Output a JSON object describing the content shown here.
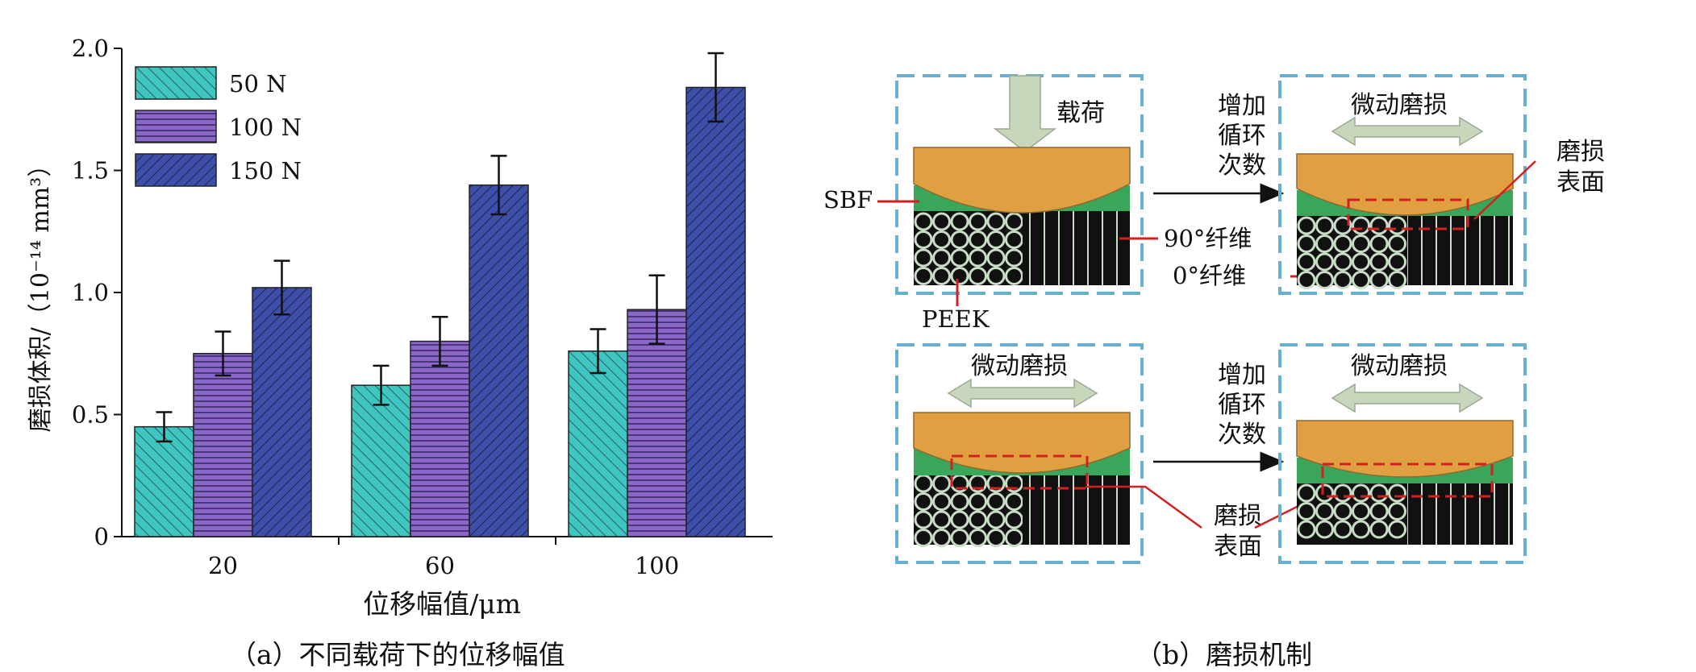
{
  "chart_data": {
    "type": "bar",
    "title": "",
    "xlabel": "位移幅值/μm",
    "ylabel": "磨损体积/（10⁻¹⁴ mm³）",
    "ylim": [
      0,
      2.0
    ],
    "yticks": [
      "0",
      "0.5",
      "1.0",
      "1.5",
      "2.0"
    ],
    "yticks_values": [
      0,
      0.5,
      1.0,
      1.5,
      2.0
    ],
    "categories": [
      "20",
      "60",
      "100"
    ],
    "legend_position": "top-left",
    "grid": false,
    "series": [
      {
        "name": "50 N",
        "values": [
          0.45,
          0.62,
          0.76
        ],
        "errors": [
          0.06,
          0.08,
          0.09
        ],
        "color": "#3fc6c0",
        "pattern": "diagonal"
      },
      {
        "name": "100 N",
        "values": [
          0.75,
          0.8,
          0.93
        ],
        "errors": [
          0.09,
          0.1,
          0.14
        ],
        "color": "#8b68c8",
        "pattern": "horizontal"
      },
      {
        "name": "150 N",
        "values": [
          1.02,
          1.44,
          1.84
        ],
        "errors": [
          0.11,
          0.12,
          0.14
        ],
        "color": "#3d4fa8",
        "pattern": "diagonal-back"
      }
    ]
  },
  "captions": {
    "a": "（a）不同载荷下的位移幅值",
    "b": "（b）磨损机制"
  },
  "mechanism": {
    "load_label": "载荷",
    "increase_cycles_lines": [
      "增加",
      "循环",
      "次数"
    ],
    "fretting_wear": "微动磨损",
    "wear_surface_lines": [
      "磨损",
      "表面"
    ],
    "sbf": "SBF",
    "fiber_90": "90°纤维",
    "fiber_0": "0°纤维",
    "peek": "PEEK"
  },
  "colors": {
    "dashed_frame": "#6aaed0",
    "ball": "#e0a042",
    "sbf_layer": "#3aa65a",
    "fiber_bg": "#111111",
    "arrow_fill": "#c8d6bc",
    "pointer_red": "#d32020"
  }
}
